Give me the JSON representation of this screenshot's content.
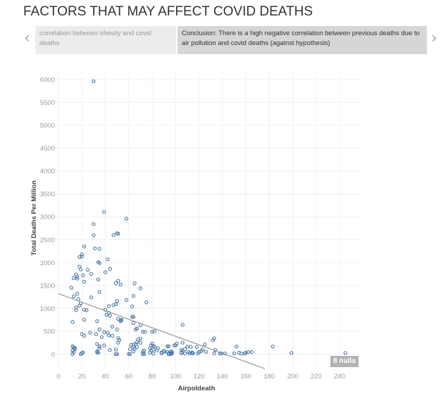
{
  "header": {
    "title": "FACTORS THAT MAY AFFECT COVID DEATHS"
  },
  "story": {
    "prev_icon": "chevron-left-icon",
    "next_icon": "chevron-right-icon",
    "points": [
      {
        "label": "correlation between obesity and covid deaths",
        "active": false
      },
      {
        "label": "Conclusion: There is a high negative correlation between previous deaths due to air pollution and covid deaths (against hypothesis)",
        "active": true
      }
    ]
  },
  "nulls_badge": "8 nulls",
  "chart_data": {
    "type": "scatter",
    "xlabel": "Airpoldeath",
    "ylabel": "Total Deaths Per Million",
    "xlim": [
      -3,
      258
    ],
    "ylim": [
      -300,
      6200
    ],
    "xticks": [
      0,
      20,
      40,
      60,
      80,
      100,
      120,
      140,
      160,
      180,
      200,
      220,
      240
    ],
    "yticks": [
      0,
      500,
      1000,
      1500,
      2000,
      2500,
      3000,
      3500,
      4000,
      4500,
      5000,
      5500,
      6000
    ],
    "grid": true,
    "marker_color": "#4e79a7",
    "trend_line": {
      "color": "#999999",
      "intercept": 1320,
      "slope": -9.3,
      "x_range": [
        0,
        176
      ]
    },
    "points": [
      [
        30,
        5960
      ],
      [
        39,
        3110
      ],
      [
        58,
        2960
      ],
      [
        30,
        2840
      ],
      [
        30,
        2600
      ],
      [
        47,
        2600
      ],
      [
        50,
        2640
      ],
      [
        51,
        2630
      ],
      [
        22,
        2350
      ],
      [
        31,
        2310
      ],
      [
        35,
        2300
      ],
      [
        20,
        2180
      ],
      [
        18,
        2120
      ],
      [
        20,
        2130
      ],
      [
        34,
        2010
      ],
      [
        35,
        1990
      ],
      [
        42,
        2070
      ],
      [
        18,
        1910
      ],
      [
        19,
        1850
      ],
      [
        25,
        1840
      ],
      [
        44,
        1860
      ],
      [
        40,
        1790
      ],
      [
        15,
        1740
      ],
      [
        16,
        1690
      ],
      [
        16,
        1650
      ],
      [
        13,
        1660
      ],
      [
        21,
        1720
      ],
      [
        28,
        1750
      ],
      [
        22,
        1580
      ],
      [
        34,
        1630
      ],
      [
        11,
        1450
      ],
      [
        51,
        1600
      ],
      [
        49,
        1550
      ],
      [
        53,
        1520
      ],
      [
        65,
        1550
      ],
      [
        70,
        1440
      ],
      [
        16,
        1320
      ],
      [
        13,
        1260
      ],
      [
        35,
        1360
      ],
      [
        28,
        1240
      ],
      [
        17,
        1200
      ],
      [
        58,
        1180
      ],
      [
        64,
        1270
      ],
      [
        75,
        1130
      ],
      [
        19,
        1110
      ],
      [
        18,
        1060
      ],
      [
        15,
        1020
      ],
      [
        15,
        960
      ],
      [
        50,
        1160
      ],
      [
        49,
        1090
      ],
      [
        47,
        1070
      ],
      [
        43,
        1050
      ],
      [
        63,
        1040
      ],
      [
        22,
        970
      ],
      [
        24,
        960
      ],
      [
        40,
        970
      ],
      [
        43,
        900
      ],
      [
        41,
        860
      ],
      [
        44,
        840
      ],
      [
        51,
        770
      ],
      [
        53,
        740
      ],
      [
        53,
        720
      ],
      [
        54,
        750
      ],
      [
        64,
        810
      ],
      [
        64,
        680
      ],
      [
        12,
        700
      ],
      [
        22,
        750
      ],
      [
        33,
        720
      ],
      [
        70,
        630
      ],
      [
        67,
        560
      ],
      [
        66,
        540
      ],
      [
        46,
        600
      ],
      [
        50,
        540
      ],
      [
        35,
        540
      ],
      [
        74,
        490
      ],
      [
        82,
        500
      ],
      [
        39,
        480
      ],
      [
        42,
        470
      ],
      [
        27,
        470
      ],
      [
        20,
        440
      ],
      [
        22,
        400
      ],
      [
        32,
        440
      ],
      [
        43,
        410
      ],
      [
        46,
        400
      ],
      [
        37,
        370
      ],
      [
        51,
        350
      ],
      [
        52,
        310
      ],
      [
        51,
        250
      ],
      [
        68,
        320
      ],
      [
        67,
        260
      ],
      [
        70,
        340
      ],
      [
        33,
        220
      ],
      [
        35,
        170
      ],
      [
        35,
        130
      ],
      [
        62,
        200
      ],
      [
        64,
        210
      ],
      [
        80,
        230
      ],
      [
        79,
        190
      ],
      [
        39,
        190
      ],
      [
        44,
        90
      ],
      [
        49,
        100
      ],
      [
        65,
        110
      ],
      [
        73,
        80
      ],
      [
        79,
        80
      ],
      [
        82,
        160
      ],
      [
        85,
        130
      ],
      [
        12,
        170
      ],
      [
        13,
        150
      ],
      [
        14,
        130
      ],
      [
        14,
        110
      ],
      [
        12,
        80
      ],
      [
        13,
        40
      ],
      [
        12,
        0
      ],
      [
        19,
        0
      ],
      [
        20,
        20
      ],
      [
        21,
        40
      ],
      [
        33,
        40
      ],
      [
        34,
        30
      ],
      [
        33,
        60
      ],
      [
        49,
        0
      ],
      [
        50,
        0
      ],
      [
        61,
        0
      ],
      [
        73,
        0
      ],
      [
        73,
        5
      ],
      [
        88,
        20
      ],
      [
        90,
        50
      ],
      [
        93,
        170
      ],
      [
        96,
        20
      ],
      [
        97,
        20
      ],
      [
        96,
        0
      ],
      [
        94,
        0
      ],
      [
        100,
        190
      ],
      [
        101,
        230
      ],
      [
        106,
        640
      ],
      [
        63,
        815
      ],
      [
        72,
        490
      ],
      [
        80,
        490
      ],
      [
        70,
        250
      ],
      [
        66,
        220
      ],
      [
        67,
        160
      ],
      [
        64,
        150
      ],
      [
        61,
        110
      ],
      [
        64,
        60
      ],
      [
        60,
        5
      ],
      [
        72,
        50
      ],
      [
        72,
        0
      ],
      [
        78,
        120
      ],
      [
        78,
        30
      ],
      [
        81,
        180
      ],
      [
        81,
        100
      ],
      [
        84,
        80
      ],
      [
        81,
        10
      ],
      [
        88,
        35
      ],
      [
        90,
        75
      ],
      [
        94,
        170
      ],
      [
        93,
        45
      ],
      [
        96,
        60
      ],
      [
        96,
        15
      ],
      [
        97,
        45
      ],
      [
        94,
        15
      ],
      [
        99,
        190
      ],
      [
        105,
        90
      ],
      [
        105,
        35
      ],
      [
        106,
        75
      ],
      [
        108,
        15
      ],
      [
        105,
        20
      ],
      [
        108,
        110
      ],
      [
        110,
        165
      ],
      [
        111,
        45
      ],
      [
        106,
        250
      ],
      [
        113,
        160
      ],
      [
        114,
        35
      ],
      [
        112,
        15
      ],
      [
        114,
        20
      ],
      [
        115,
        20
      ],
      [
        118,
        155
      ],
      [
        119,
        15
      ],
      [
        120,
        45
      ],
      [
        122,
        65
      ],
      [
        123,
        100
      ],
      [
        125,
        210
      ],
      [
        126,
        50
      ],
      [
        132,
        305
      ],
      [
        133,
        345
      ],
      [
        134,
        90
      ],
      [
        133,
        15
      ],
      [
        138,
        15
      ],
      [
        139,
        15
      ],
      [
        142,
        15
      ],
      [
        150,
        15
      ],
      [
        152,
        165
      ],
      [
        154,
        30
      ],
      [
        156,
        15
      ],
      [
        159,
        15
      ],
      [
        160,
        30
      ],
      [
        162,
        45
      ],
      [
        165,
        45
      ],
      [
        183,
        165
      ],
      [
        199,
        25
      ],
      [
        245,
        25
      ]
    ]
  }
}
